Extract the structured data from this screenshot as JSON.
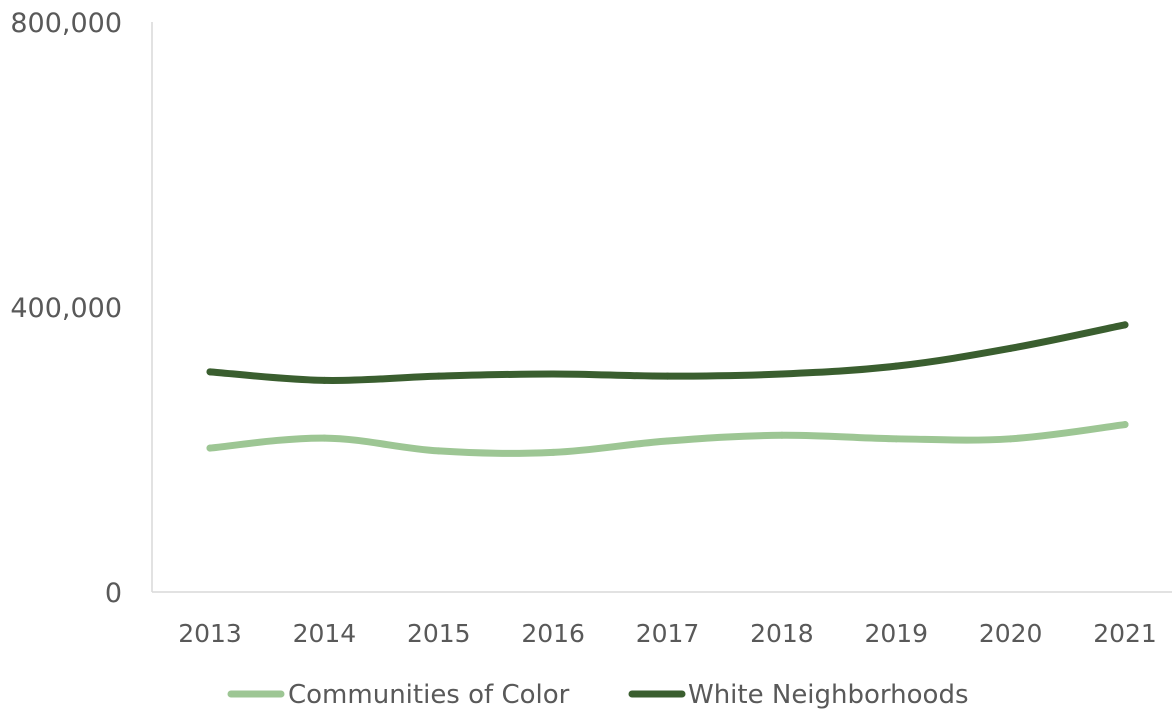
{
  "chart_data": {
    "type": "line",
    "title": "",
    "xlabel": "",
    "ylabel": "",
    "categories": [
      "2013",
      "2014",
      "2015",
      "2016",
      "2017",
      "2018",
      "2019",
      "2020",
      "2021"
    ],
    "series": [
      {
        "name": "Communities of Color",
        "color": "#9dc694",
        "values": [
          202000,
          216000,
          198000,
          196000,
          212000,
          220000,
          215000,
          215000,
          235000
        ]
      },
      {
        "name": "White Neighborhoods",
        "color": "#3a5e2f",
        "values": [
          309000,
          297000,
          303000,
          306000,
          303000,
          306000,
          317000,
          342000,
          375000
        ]
      }
    ],
    "ylim": [
      0,
      800000
    ],
    "yticks": [
      "0",
      "400,000",
      "800,000"
    ],
    "ytick_values": [
      0,
      400000,
      800000
    ],
    "grid": false,
    "legend_position": "bottom"
  }
}
